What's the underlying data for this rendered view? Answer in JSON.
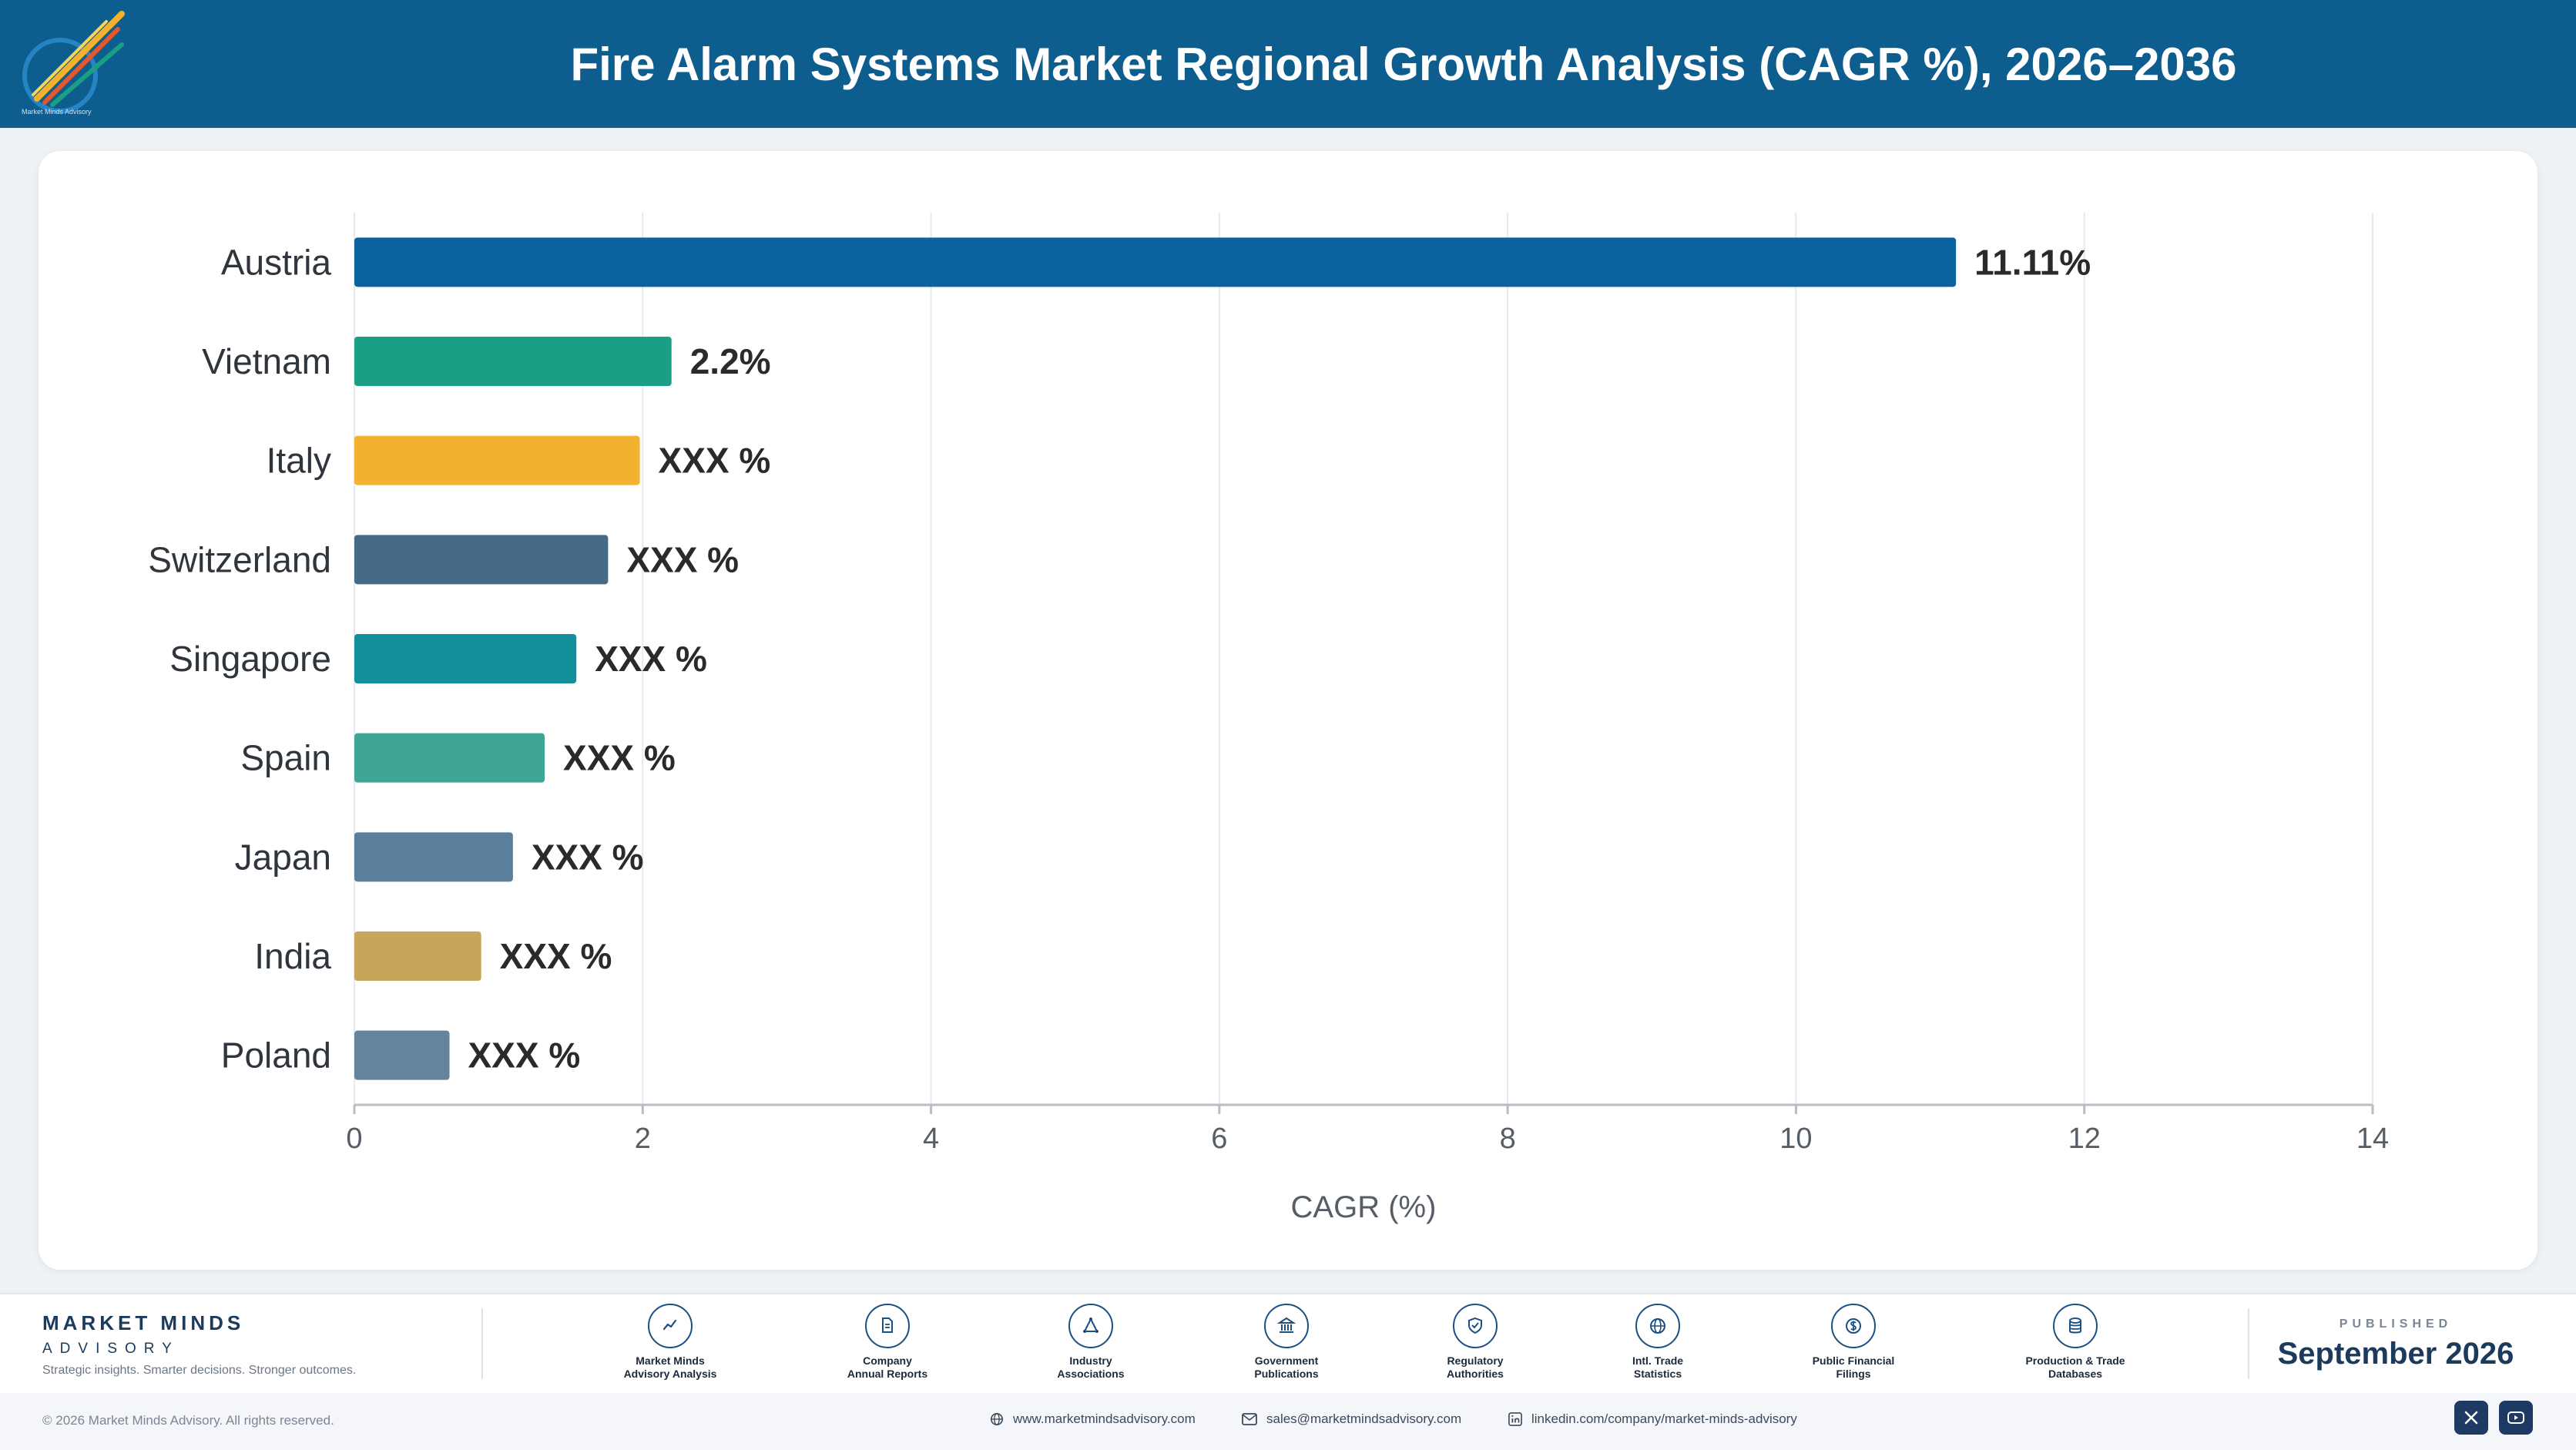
{
  "header": {
    "title": "Fire Alarm Systems Market Regional Growth Analysis (CAGR %), 2026–2036",
    "logo_text": "Market Minds Advisory"
  },
  "chart_data": {
    "type": "bar",
    "orientation": "horizontal",
    "categories": [
      "Austria",
      "Vietnam",
      "Italy",
      "Switzerland",
      "Singapore",
      "Spain",
      "Japan",
      "India",
      "Poland"
    ],
    "values": [
      11.11,
      2.2,
      1.98,
      1.76,
      1.54,
      1.32,
      1.1,
      0.88,
      0.66
    ],
    "data_labels": [
      "11.11%",
      "2.2%",
      "XXX %",
      "XXX %",
      "XXX %",
      "XXX %",
      "XXX %",
      "XXX %",
      "XXX %"
    ],
    "colors": [
      "#0a62a0",
      "#1a9e84",
      "#f3b130",
      "#456b87",
      "#138f9c",
      "#3fa596",
      "#5a7f9c",
      "#c7a55a",
      "#63849c"
    ],
    "xlabel": "CAGR (%)",
    "ylabel": "",
    "xlim": [
      0,
      14
    ],
    "xticks": [
      0,
      2,
      4,
      6,
      8,
      10,
      12,
      14
    ],
    "grid": true,
    "legend": "none"
  },
  "footer": {
    "brand_name": "MARKET MINDS",
    "brand_sub": "ADVISORY",
    "brand_tagline": "Strategic insights. Smarter decisions. Stronger outcomes.",
    "sources": [
      {
        "line1": "Market Minds",
        "line2": "Advisory Analysis",
        "icon": "trend-icon"
      },
      {
        "line1": "Company",
        "line2": "Annual Reports",
        "icon": "document-icon"
      },
      {
        "line1": "Industry",
        "line2": "Associations",
        "icon": "network-icon"
      },
      {
        "line1": "Government",
        "line2": "Publications",
        "icon": "building-icon"
      },
      {
        "line1": "Regulatory",
        "line2": "Authorities",
        "icon": "shield-icon"
      },
      {
        "line1": "Intl. Trade",
        "line2": "Statistics",
        "icon": "globe-icon"
      },
      {
        "line1": "Public Financial",
        "line2": "Filings",
        "icon": "dollar-icon"
      },
      {
        "line1": "Production & Trade",
        "line2": "Databases",
        "icon": "database-icon"
      }
    ],
    "published_label": "PUBLISHED",
    "published_date": "September 2026",
    "copyright": "© 2026 Market Minds Advisory. All rights reserved.",
    "website": "www.marketmindsadvisory.com",
    "email": "sales@marketmindsadvisory.com",
    "linkedin": "linkedin.com/company/market-minds-advisory"
  }
}
